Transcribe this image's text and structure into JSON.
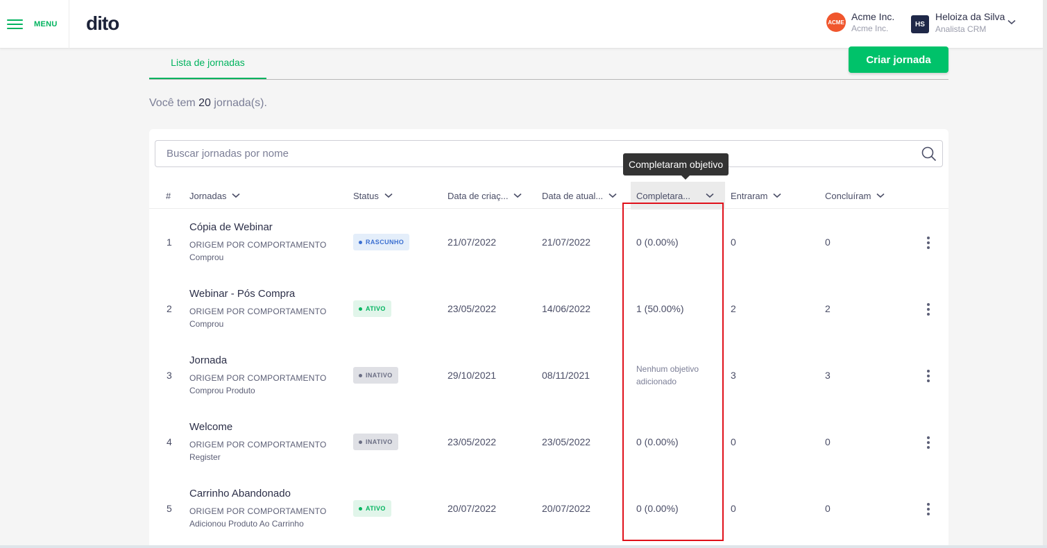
{
  "header": {
    "menu_label": "MENU",
    "logo_text": "dito",
    "org": {
      "logo_text": "ACME",
      "name": "Acme Inc.",
      "sub": "Acme Inc."
    },
    "user": {
      "initials": "HS",
      "name": "Heloiza da Silva",
      "role": "Analista CRM"
    }
  },
  "tabs": {
    "active_label": "Lista de jornadas"
  },
  "create_button": "Criar jornada",
  "summary": {
    "prefix": "Você tem",
    "count": "20",
    "suffix": "jornada(s)."
  },
  "search": {
    "placeholder": "Buscar jornadas por nome"
  },
  "tooltip": "Completaram objetivo",
  "columns": {
    "num": "#",
    "jornadas": "Jornadas",
    "status": "Status",
    "created": "Data de criaç...",
    "updated": "Data de atual...",
    "completed": "Completara...",
    "entered": "Entraram",
    "concluded": "Concluíram"
  },
  "rows": [
    {
      "num": "1",
      "title": "Cópia de Webinar",
      "origin": "ORIGEM POR COMPORTAMENTO",
      "trigger": "Comprou",
      "status": "RASCUNHO",
      "created": "21/07/2022",
      "updated": "21/07/2022",
      "completed": "0 (0.00%)",
      "entered": "0",
      "concluded": "0"
    },
    {
      "num": "2",
      "title": "Webinar - Pós Compra",
      "origin": "ORIGEM POR COMPORTAMENTO",
      "trigger": "Comprou",
      "status": "ATIVO",
      "created": "23/05/2022",
      "updated": "14/06/2022",
      "completed": "1 (50.00%)",
      "entered": "2",
      "concluded": "2"
    },
    {
      "num": "3",
      "title": "Jornada",
      "origin": "ORIGEM POR COMPORTAMENTO",
      "trigger": "Comprou Produto",
      "status": "INATIVO",
      "created": "29/10/2021",
      "updated": "08/11/2021",
      "completed": "Nenhum objetivo adicionado",
      "entered": "3",
      "concluded": "3"
    },
    {
      "num": "4",
      "title": "Welcome",
      "origin": "ORIGEM POR COMPORTAMENTO",
      "trigger": "Register",
      "status": "INATIVO",
      "created": "23/05/2022",
      "updated": "23/05/2022",
      "completed": "0 (0.00%)",
      "entered": "0",
      "concluded": "0"
    },
    {
      "num": "5",
      "title": "Carrinho Abandonado",
      "origin": "ORIGEM POR COMPORTAMENTO",
      "trigger": "Adicionou Produto Ao Carrinho",
      "status": "ATIVO",
      "created": "20/07/2022",
      "updated": "20/07/2022",
      "completed": "0 (0.00%)",
      "entered": "0",
      "concluded": "0"
    }
  ],
  "colors": {
    "brand_green": "#00b35e",
    "button_green": "#00c26a",
    "highlight_red": "#e0101a"
  }
}
